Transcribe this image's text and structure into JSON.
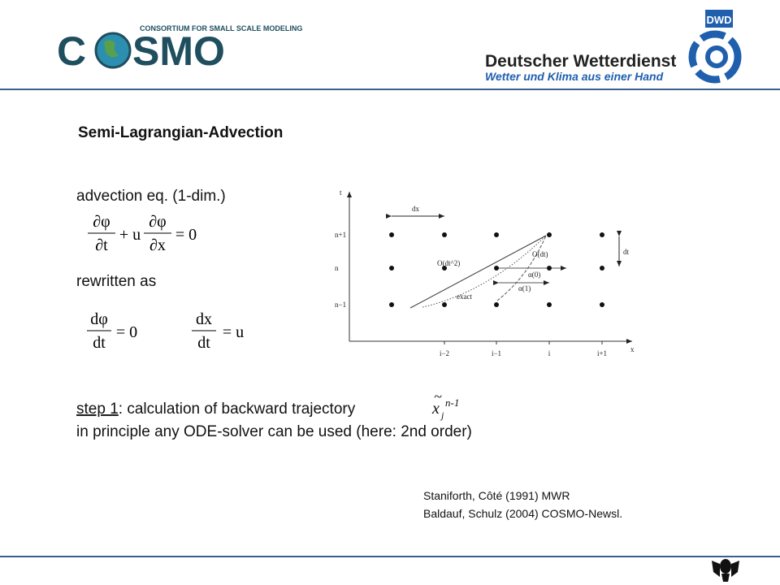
{
  "header": {
    "consortium": "CONSORTIUM FOR SMALL SCALE MODELING",
    "cosmo_left": "C",
    "cosmo_right": "SMO",
    "dwd_badge": "DWD",
    "dwd_name": "Deutscher Wetterdienst",
    "dwd_slogan": "Wetter und Klima aus einer Hand"
  },
  "title": "Semi-Lagrangian-Advection",
  "advection_label": "advection eq. (1-dim.)",
  "equation_1": {
    "frac1": {
      "num": "∂φ",
      "den": "∂t"
    },
    "mid": "+ u",
    "frac2": {
      "num": "∂φ",
      "den": "∂x"
    },
    "rhs": "= 0"
  },
  "rewritten_label": "rewritten as",
  "equation_2": {
    "frac": {
      "num": "dφ",
      "den": "dt"
    },
    "rhs": "= 0"
  },
  "equation_3": {
    "frac": {
      "num": "dx",
      "den": "dt"
    },
    "rhs": "= u"
  },
  "diagram": {
    "t_axis": "t",
    "x_axis": "x",
    "rows": [
      "n+1",
      "n",
      "n−1"
    ],
    "columns": [
      "i−2",
      "i−1",
      "i",
      "i+1"
    ],
    "dx": "dx",
    "dt": "dt",
    "o_dt2": "O(dt^2)",
    "o_dt": "O(dt)",
    "alpha0": "α(0)",
    "alpha1": "α(1)",
    "exact": "exact"
  },
  "step": {
    "underlined": "step 1",
    "text": ": calculation of backward trajectory",
    "symbol": {
      "base": "x",
      "tilde": "~",
      "sub": "j",
      "sup": "n-1"
    }
  },
  "principle": "in principle any ODE-solver can be used (here: 2nd order)",
  "references": [
    "Staniforth, Côté (1991) MWR",
    "Baldauf, Schulz (2004) COSMO-Newsl."
  ]
}
